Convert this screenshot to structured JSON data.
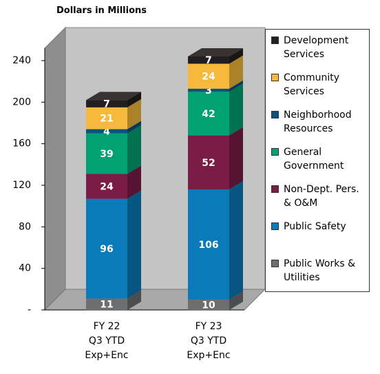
{
  "chart_data": {
    "type": "stacked_bar_3d",
    "title": "Dollars in Millions",
    "categories": [
      "FY 22\nQ3 YTD\nExp+Enc",
      "FY 23\nQ3 YTD\nExp+Enc"
    ],
    "series": [
      {
        "name": "Public Works & Utilities",
        "color": "#6d6e70",
        "values": [
          11,
          10
        ]
      },
      {
        "name": "Public Safety",
        "color": "#0a7ab8",
        "values": [
          96,
          106
        ]
      },
      {
        "name": "Non-Dept. Pers. & O&M",
        "color": "#7b1c47",
        "values": [
          24,
          52
        ]
      },
      {
        "name": "General Government",
        "color": "#00a173",
        "values": [
          39,
          42
        ]
      },
      {
        "name": "Neighborhood Resources",
        "color": "#0b527f",
        "values": [
          4,
          3
        ]
      },
      {
        "name": "Community Services",
        "color": "#f6b93b",
        "values": [
          21,
          24
        ]
      },
      {
        "name": "Development Services",
        "color": "#231f20",
        "values": [
          7,
          7
        ]
      }
    ],
    "ylim": [
      0,
      240
    ],
    "yticks": [
      {
        "value": 0,
        "label": "-"
      },
      40,
      80,
      120,
      160,
      200,
      240
    ],
    "legend": "right"
  }
}
